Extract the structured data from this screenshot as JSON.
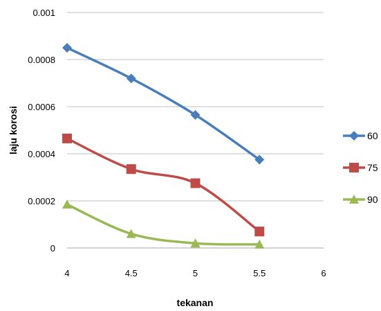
{
  "chart_data": {
    "type": "line",
    "x": [
      4,
      4.5,
      5,
      5.5
    ],
    "xlim": [
      4,
      6
    ],
    "xticks": [
      "4",
      "4.5",
      "5",
      "5.5",
      "6"
    ],
    "ylim": [
      0,
      0.001
    ],
    "yticks": [
      "0",
      "0.0002",
      "0.0004",
      "0.0006",
      "0.0008",
      "0.001"
    ],
    "xlabel": "tekanan",
    "ylabel": "laju korosi",
    "grid": "horizontal",
    "legend_position": "right",
    "series": [
      {
        "name": "60",
        "values": [
          0.00085,
          0.00072,
          0.000565,
          0.000375
        ],
        "color": "#4a7ebb",
        "marker": "diamond"
      },
      {
        "name": "75",
        "values": [
          0.000465,
          0.000335,
          0.000275,
          7e-05
        ],
        "color": "#be4b48",
        "marker": "square"
      },
      {
        "name": "90",
        "values": [
          0.000185,
          6e-05,
          2e-05,
          1.5e-05
        ],
        "color": "#98b954",
        "marker": "triangle"
      }
    ]
  }
}
